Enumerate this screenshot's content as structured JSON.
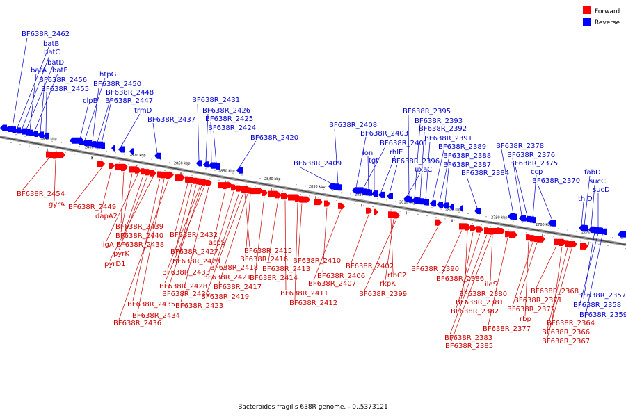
{
  "caption": "Bacteroides fragilis 638R genome. - 0..5373121",
  "legend": {
    "forward_label": "Forward",
    "reverse_label": "Reverse",
    "forward_color": "#ff0000",
    "reverse_color": "#0000ff"
  },
  "ticks": [
    "2890 kbp",
    "2880 kbp",
    "2870 kbp",
    "2860 kbp",
    "2850 kbp",
    "2840 kbp",
    "2830 kbp",
    "2820 kbp",
    "2810 kbp",
    "2800 kbp",
    "2790 kbp",
    "2780 kbp",
    "2770 kbp"
  ],
  "forward_genes": [
    "BF638R_2454",
    "gyrA",
    "BF638R_2449",
    "dapA2",
    "BF638R_2439",
    "BF638R_2440",
    "ligA",
    "BF638R_2438",
    "pyrK",
    "pyrD1",
    "BF638R_2432",
    "BF638R_2427",
    "BF638R_2429",
    "aspS",
    "BF638R_2433",
    "BF638R_2421",
    "BF638R_2418",
    "BF638R_2415",
    "BF638R_2416",
    "BF638R_2428",
    "BF638R_2430",
    "BF638R_2435",
    "BF638R_2434",
    "BF638R_2436",
    "BF638R_2423",
    "BF638R_2419",
    "BF638R_2417",
    "BF638R_2414",
    "BF638R_2413",
    "BF638R_2410",
    "BF638R_2411",
    "BF638R_2412",
    "BF638R_2406",
    "BF638R_2407",
    "BF638R_2402",
    "rfbC2",
    "rkpK",
    "BF638R_2399",
    "BF638R_2390",
    "BF638R_2386",
    "ileS",
    "BF638R_2380",
    "BF638R_2381",
    "BF638R_2382",
    "BF638R_2383",
    "BF638R_2385",
    "BF638R_2377",
    "rbp",
    "BF638R_2372",
    "BF638R_2371",
    "BF638R_2368",
    "BF638R_2364",
    "BF638R_2366",
    "BF638R_2367"
  ],
  "reverse_genes": [
    "BF638R_2462",
    "batB",
    "batC",
    "batD",
    "batA",
    "batE",
    "BF638R_2456",
    "BF638R_2455",
    "htpG",
    "BF638R_2450",
    "BF638R_2448",
    "clpB",
    "BF638R_2447",
    "trmD",
    "BF638R_2437",
    "BF638R_2431",
    "BF638R_2426",
    "BF638R_2425",
    "BF638R_2424",
    "BF638R_2420",
    "BF638R_2409",
    "BF638R_2408",
    "BF638R_2403",
    "BF638R_2401",
    "lon",
    "tgt",
    "rhlE",
    "BF638R_2396",
    "uxaC",
    "BF638R_2395",
    "BF638R_2393",
    "BF638R_2392",
    "BF638R_2391",
    "BF638R_2389",
    "BF638R_2388",
    "BF638R_2387",
    "BF638R_2384",
    "BF638R_2378",
    "BF638R_2376",
    "BF638R_2375",
    "ccp",
    "BF638R_2370",
    "fabD",
    "sucC",
    "sucD",
    "thiD",
    "BF638R_2357",
    "BF638R_2358",
    "BF638R_2359"
  ]
}
